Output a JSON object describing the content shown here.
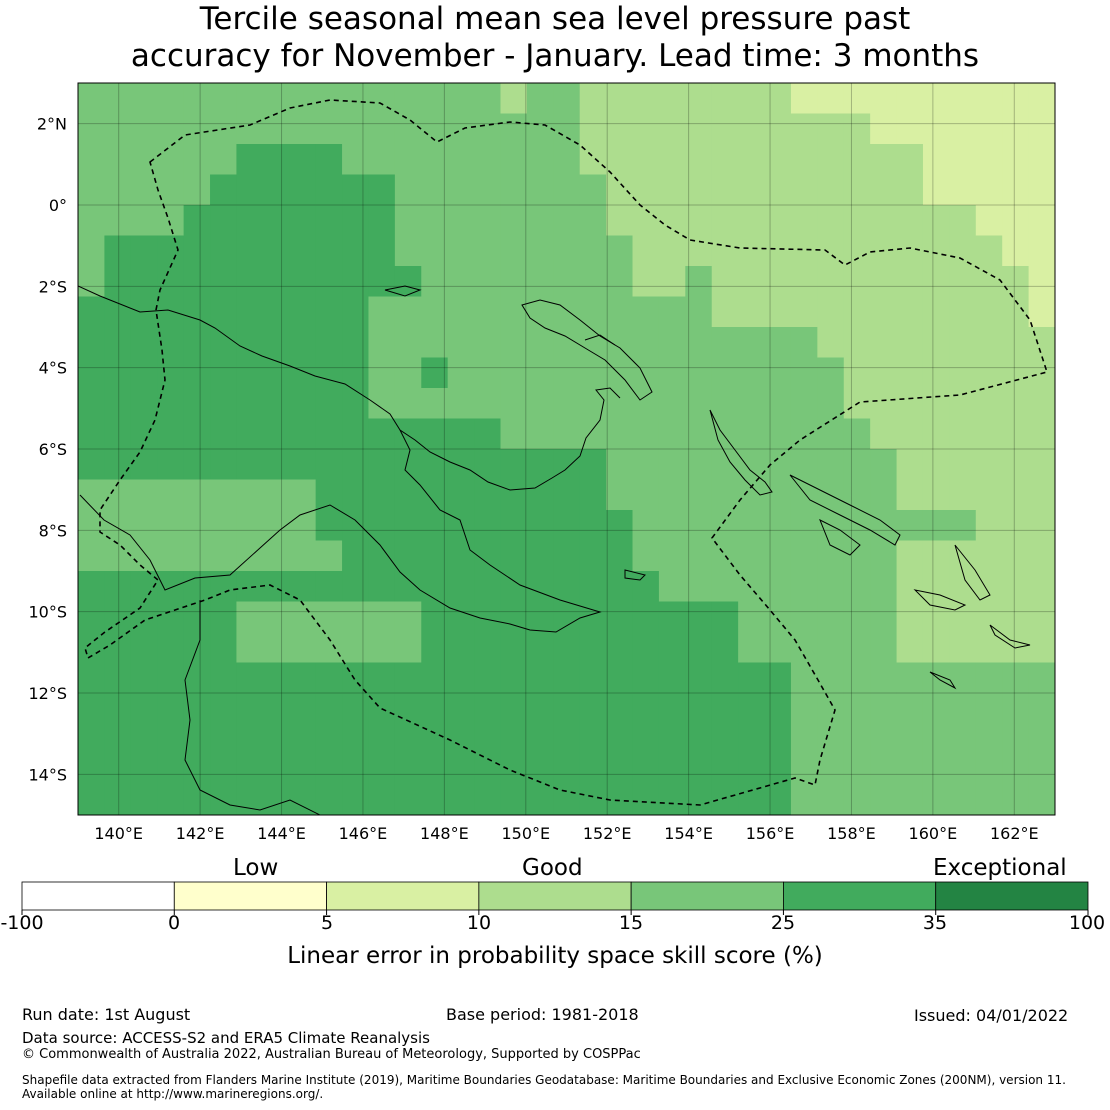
{
  "title": {
    "line1": "Tercile seasonal mean sea level pressure past",
    "line2": "accuracy for November - January. Lead time: 3 months"
  },
  "map": {
    "lon_ticks": [
      "140°E",
      "142°E",
      "144°E",
      "146°E",
      "148°E",
      "150°E",
      "152°E",
      "154°E",
      "156°E",
      "158°E",
      "160°E",
      "162°E"
    ],
    "lat_ticks": [
      "2°N",
      "0°",
      "2°S",
      "4°S",
      "6°S",
      "8°S",
      "10°S",
      "12°S",
      "14°S"
    ],
    "lon_range": [
      139,
      163
    ],
    "lat_range": [
      -15,
      3
    ],
    "grid_values": [
      [
        15,
        15,
        15,
        15,
        15,
        15,
        15,
        15,
        15,
        15,
        15,
        15,
        15,
        15,
        15,
        15,
        10,
        15,
        15,
        10,
        10,
        10,
        10,
        10,
        10,
        10,
        10,
        5,
        5,
        5,
        5,
        5,
        5,
        5,
        5,
        5,
        5
      ],
      [
        15,
        15,
        15,
        15,
        15,
        15,
        15,
        15,
        15,
        15,
        15,
        15,
        15,
        15,
        15,
        15,
        15,
        15,
        15,
        10,
        10,
        10,
        10,
        10,
        10,
        10,
        10,
        10,
        10,
        10,
        5,
        5,
        5,
        5,
        5,
        5,
        5
      ],
      [
        15,
        15,
        15,
        15,
        15,
        15,
        25,
        25,
        25,
        25,
        15,
        15,
        15,
        15,
        15,
        15,
        15,
        15,
        15,
        10,
        10,
        10,
        10,
        10,
        10,
        10,
        10,
        10,
        10,
        10,
        10,
        10,
        5,
        5,
        5,
        5,
        5
      ],
      [
        15,
        15,
        15,
        15,
        15,
        25,
        25,
        25,
        25,
        25,
        25,
        25,
        15,
        15,
        15,
        15,
        15,
        15,
        15,
        15,
        10,
        10,
        10,
        10,
        10,
        10,
        10,
        10,
        10,
        10,
        10,
        10,
        5,
        5,
        5,
        5,
        5
      ],
      [
        15,
        15,
        15,
        15,
        25,
        25,
        25,
        25,
        25,
        25,
        25,
        25,
        15,
        15,
        15,
        15,
        15,
        15,
        15,
        15,
        10,
        10,
        10,
        10,
        10,
        10,
        10,
        10,
        10,
        10,
        10,
        10,
        10,
        10,
        5,
        5,
        5
      ],
      [
        15,
        25,
        25,
        25,
        25,
        25,
        25,
        25,
        25,
        25,
        25,
        25,
        15,
        15,
        15,
        15,
        15,
        15,
        15,
        15,
        15,
        10,
        10,
        10,
        10,
        10,
        10,
        10,
        10,
        10,
        10,
        10,
        10,
        10,
        10,
        5,
        5
      ],
      [
        15,
        25,
        25,
        25,
        25,
        25,
        25,
        25,
        25,
        25,
        25,
        25,
        25,
        15,
        15,
        15,
        15,
        15,
        15,
        15,
        15,
        10,
        10,
        15,
        10,
        10,
        10,
        10,
        10,
        10,
        10,
        10,
        10,
        10,
        10,
        10,
        5
      ],
      [
        25,
        25,
        25,
        25,
        25,
        25,
        25,
        25,
        25,
        25,
        25,
        15,
        15,
        15,
        15,
        15,
        15,
        15,
        15,
        15,
        15,
        15,
        15,
        15,
        10,
        10,
        10,
        10,
        10,
        10,
        10,
        10,
        10,
        10,
        10,
        10,
        5
      ],
      [
        25,
        25,
        25,
        25,
        25,
        25,
        25,
        25,
        25,
        25,
        25,
        15,
        15,
        15,
        15,
        15,
        15,
        15,
        15,
        15,
        15,
        15,
        15,
        15,
        15,
        15,
        15,
        15,
        10,
        10,
        10,
        10,
        10,
        10,
        10,
        10,
        10
      ],
      [
        25,
        25,
        25,
        25,
        25,
        25,
        25,
        25,
        25,
        25,
        25,
        15,
        15,
        25,
        15,
        15,
        15,
        15,
        15,
        15,
        15,
        15,
        15,
        15,
        15,
        15,
        15,
        15,
        15,
        10,
        10,
        10,
        10,
        10,
        10,
        10,
        10
      ],
      [
        25,
        25,
        25,
        25,
        25,
        25,
        25,
        25,
        25,
        25,
        25,
        15,
        15,
        15,
        15,
        15,
        15,
        15,
        15,
        15,
        15,
        15,
        15,
        15,
        15,
        15,
        15,
        15,
        15,
        10,
        10,
        10,
        10,
        10,
        10,
        10,
        10
      ],
      [
        25,
        25,
        25,
        25,
        25,
        25,
        25,
        25,
        25,
        25,
        25,
        25,
        25,
        25,
        25,
        25,
        15,
        15,
        15,
        15,
        15,
        15,
        15,
        15,
        15,
        15,
        15,
        15,
        15,
        15,
        10,
        10,
        10,
        10,
        10,
        10,
        10
      ],
      [
        25,
        25,
        25,
        25,
        25,
        25,
        25,
        25,
        25,
        25,
        25,
        25,
        25,
        25,
        25,
        25,
        25,
        25,
        25,
        25,
        15,
        15,
        15,
        15,
        15,
        15,
        15,
        15,
        15,
        15,
        15,
        10,
        10,
        10,
        10,
        10,
        10
      ],
      [
        15,
        15,
        15,
        15,
        15,
        15,
        15,
        15,
        15,
        25,
        25,
        25,
        25,
        25,
        25,
        25,
        25,
        25,
        25,
        25,
        15,
        15,
        15,
        15,
        15,
        15,
        15,
        15,
        15,
        15,
        15,
        10,
        10,
        10,
        10,
        10,
        10
      ],
      [
        15,
        15,
        15,
        15,
        15,
        15,
        15,
        15,
        15,
        25,
        25,
        25,
        25,
        25,
        25,
        25,
        25,
        25,
        25,
        25,
        25,
        15,
        15,
        15,
        15,
        15,
        15,
        15,
        15,
        15,
        15,
        15,
        15,
        15,
        10,
        10,
        10
      ],
      [
        15,
        15,
        15,
        15,
        15,
        15,
        15,
        15,
        15,
        15,
        25,
        25,
        25,
        25,
        25,
        25,
        25,
        25,
        25,
        25,
        25,
        15,
        15,
        15,
        15,
        15,
        15,
        15,
        15,
        15,
        15,
        10,
        10,
        10,
        10,
        10,
        10
      ],
      [
        25,
        25,
        25,
        25,
        25,
        25,
        25,
        25,
        25,
        25,
        25,
        25,
        25,
        25,
        25,
        25,
        25,
        25,
        25,
        25,
        25,
        25,
        15,
        15,
        15,
        15,
        15,
        15,
        15,
        15,
        15,
        10,
        10,
        10,
        10,
        10,
        10
      ],
      [
        25,
        25,
        25,
        25,
        25,
        25,
        15,
        15,
        15,
        15,
        15,
        15,
        15,
        25,
        25,
        25,
        25,
        25,
        25,
        25,
        25,
        25,
        25,
        25,
        25,
        15,
        15,
        15,
        15,
        15,
        15,
        10,
        10,
        10,
        10,
        10,
        10
      ],
      [
        25,
        25,
        25,
        25,
        25,
        25,
        15,
        15,
        15,
        15,
        15,
        15,
        15,
        25,
        25,
        25,
        25,
        25,
        25,
        25,
        25,
        25,
        25,
        25,
        25,
        15,
        15,
        15,
        15,
        15,
        15,
        10,
        10,
        10,
        10,
        10,
        10
      ],
      [
        25,
        25,
        25,
        25,
        25,
        25,
        25,
        25,
        25,
        25,
        25,
        25,
        25,
        25,
        25,
        25,
        25,
        25,
        25,
        25,
        25,
        25,
        25,
        25,
        25,
        25,
        25,
        15,
        15,
        15,
        15,
        15,
        15,
        15,
        15,
        15,
        15
      ],
      [
        25,
        25,
        25,
        25,
        25,
        25,
        25,
        25,
        25,
        25,
        25,
        25,
        25,
        25,
        25,
        25,
        25,
        25,
        25,
        25,
        25,
        25,
        25,
        25,
        25,
        25,
        25,
        15,
        15,
        15,
        15,
        15,
        15,
        15,
        15,
        15,
        15
      ],
      [
        25,
        25,
        25,
        25,
        25,
        25,
        25,
        25,
        25,
        25,
        25,
        25,
        25,
        25,
        25,
        25,
        25,
        25,
        25,
        25,
        25,
        25,
        25,
        25,
        25,
        25,
        25,
        15,
        15,
        15,
        15,
        15,
        15,
        15,
        15,
        15,
        15
      ],
      [
        25,
        25,
        25,
        25,
        25,
        25,
        25,
        25,
        25,
        25,
        25,
        25,
        25,
        25,
        25,
        25,
        25,
        25,
        25,
        25,
        25,
        25,
        25,
        25,
        25,
        25,
        25,
        15,
        15,
        15,
        15,
        15,
        15,
        15,
        15,
        15,
        15
      ],
      [
        25,
        25,
        25,
        25,
        25,
        25,
        25,
        25,
        25,
        25,
        25,
        25,
        25,
        25,
        25,
        25,
        25,
        25,
        25,
        25,
        25,
        25,
        25,
        25,
        25,
        25,
        25,
        15,
        15,
        15,
        15,
        15,
        15,
        15,
        15,
        15,
        15
      ]
    ]
  },
  "colorbar": {
    "categories": [
      "Low",
      "Good",
      "Exceptional"
    ],
    "ticks": [
      "-100",
      "0",
      "5",
      "10",
      "15",
      "25",
      "35",
      "100"
    ],
    "colors": [
      "#ffffff",
      "#ffffcc",
      "#d9f0a3",
      "#addd8e",
      "#78c679",
      "#41ab5d",
      "#238443"
    ],
    "label": "Linear error in probability space skill score (%)"
  },
  "footer": {
    "run_date": "Run date: 1st August",
    "base_period": "Base period: 1981-2018",
    "issued": "Issued: 04/01/2022",
    "data_source": "Data source: ACCESS-S2 and ERA5 Climate Reanalysis",
    "copyright": "© Commonwealth of Australia 2022, Australian Bureau of Meteorology, Supported by COSPPac",
    "shapefile_line1": "Shapefile data extracted from Flanders Marine Institute (2019), Maritime Boundaries Geodatabase: Maritime Boundaries and Exclusive Economic Zones (200NM), version 11.",
    "shapefile_line2": "Available online at http://www.marineregions.org/."
  }
}
